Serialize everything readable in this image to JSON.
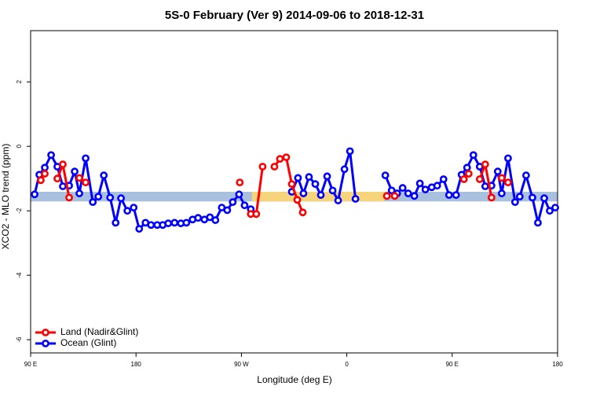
{
  "chart_data": {
    "type": "line",
    "title": "5S-0 February (Ver 9)   2014-09-06 to 2018-12-31",
    "xlabel": "Longitude (deg E)",
    "ylabel": "XCO2 - MLO trend (ppm)",
    "xlim": [
      90,
      540
    ],
    "ylim": [
      -6.41,
      3.59
    ],
    "xticks": [
      {
        "value": 90,
        "label": "90 E"
      },
      180,
      {
        "value": 270,
        "label": "90 W"
      },
      {
        "value": 360,
        "label": "0"
      },
      {
        "value": 450,
        "label": "90 E"
      },
      {
        "value": 540,
        "label": "180"
      }
    ],
    "yticks": [
      -6,
      -4,
      -2,
      0,
      2
    ],
    "grid": false,
    "legend_position": "bottom-left",
    "bands": [
      {
        "xlim": [
          90,
          540
        ],
        "ylim": [
          -1.71,
          -1.41
        ],
        "color": "#a9c0de"
      },
      {
        "xlim": [
          279,
          392
        ],
        "ylim": [
          -1.71,
          -1.41
        ],
        "color": "#f6d47c"
      }
    ],
    "series": [
      {
        "name": "Land (Nadir&Glint)",
        "color": "#ff0000",
        "x": [
          98.7,
          102.1,
          null,
          112.8,
          117.5,
          122.9,
          null,
          131.6,
          137.0,
          null,
          268.6,
          null,
          278.0,
          282.7,
          288.1,
          null,
          298.2,
          302.9,
          308.3,
          313.0,
          317.7,
          322.4,
          null,
          394.2,
          null,
          400.9,
          null,
          460.0,
          464.1,
          null,
          473.5,
          478.2,
          483.6,
          null,
          492.3,
          497.7
        ],
        "values": [
          -1.05,
          -0.85,
          null,
          -1.0,
          -0.56,
          -1.59,
          null,
          -0.98,
          -1.12,
          null,
          -1.12,
          null,
          -2.1,
          -2.1,
          -0.63,
          null,
          -0.63,
          -0.39,
          -0.34,
          -1.17,
          -1.66,
          -2.05,
          null,
          -1.54,
          null,
          -1.54,
          null,
          -1.02,
          -0.85,
          null,
          -1.02,
          -0.56,
          -1.59,
          null,
          -0.98,
          -1.12
        ]
      },
      {
        "name": "Ocean (Glint)",
        "color": "#0000ff",
        "x": [
          93.4,
          97.4,
          102.1,
          107.5,
          112.8,
          117.5,
          122.9,
          127.6,
          131.6,
          137.0,
          143.1,
          147.8,
          152.5,
          157.9,
          162.6,
          167.2,
          172.6,
          178.0,
          182.7,
          188.1,
          192.8,
          198.1,
          202.8,
          207.5,
          212.9,
          218.3,
          223.0,
          228.3,
          233.0,
          238.4,
          243.1,
          247.8,
          253.2,
          257.9,
          262.6,
          268.0,
          272.7,
          278.0,
          null,
          313.0,
          318.3,
          323.0,
          327.7,
          333.1,
          337.8,
          343.2,
          347.9,
          352.6,
          358.0,
          362.7,
          367.4,
          null,
          392.9,
          398.3,
          403.0,
          407.7,
          412.4,
          417.7,
          422.4,
          427.1,
          432.5,
          437.2,
          442.6,
          447.3,
          453.3,
          458.0,
          462.7,
          468.1,
          473.5,
          478.2,
          483.6,
          488.9,
          492.3,
          497.7,
          503.7,
          507.7,
          513.1,
          518.5,
          523.2,
          528.6,
          533.3,
          538.0
        ],
        "values": [
          -1.49,
          -0.88,
          -0.66,
          -0.27,
          -0.63,
          -1.24,
          -1.22,
          -0.78,
          -1.46,
          -0.37,
          -1.73,
          -1.56,
          -0.9,
          -1.59,
          -2.37,
          -1.61,
          -2.0,
          -1.9,
          -2.56,
          -2.37,
          -2.44,
          -2.44,
          -2.44,
          -2.39,
          -2.37,
          -2.39,
          -2.37,
          -2.27,
          -2.22,
          -2.27,
          -2.2,
          -2.29,
          -1.9,
          -1.98,
          -1.73,
          -1.49,
          -1.83,
          -1.95,
          null,
          -1.41,
          -0.98,
          -1.46,
          -0.95,
          -1.17,
          -1.51,
          -0.93,
          -1.37,
          -1.68,
          -0.71,
          -0.15,
          -1.63,
          null,
          -0.9,
          -1.37,
          -1.46,
          -1.29,
          -1.46,
          -1.54,
          -1.15,
          -1.34,
          -1.27,
          -1.22,
          -1.02,
          -1.51,
          -1.51,
          -0.88,
          -0.66,
          -0.27,
          -0.63,
          -1.24,
          -1.22,
          -0.78,
          -1.46,
          -0.37,
          -1.73,
          -1.56,
          -0.9,
          -1.59,
          -2.37,
          -1.61,
          -2.0,
          -1.9
        ]
      }
    ]
  }
}
